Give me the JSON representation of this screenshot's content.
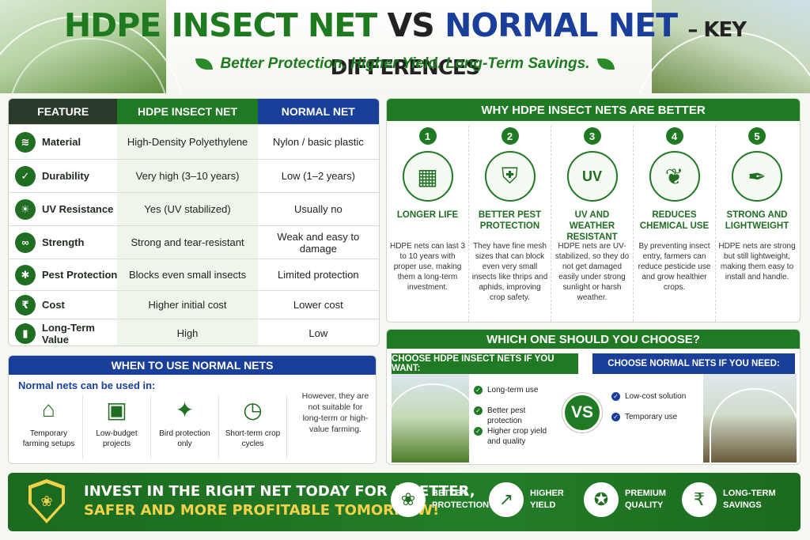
{
  "header": {
    "title_part1": "HDPE INSECT NET",
    "title_vs": "VS",
    "title_part2": "NORMAL NET",
    "title_part3": "– KEY DIFFERENCES",
    "subtitle": "Better Protection. Higher Yield. Long-Term Savings."
  },
  "table": {
    "headers": [
      "FEATURE",
      "HDPE INSECT NET",
      "NORMAL NET"
    ],
    "rows": [
      {
        "icon": "layers-icon",
        "glyph": "≋",
        "feature": "Material",
        "hdpe": "High-Density Polyethylene",
        "normal": "Nylon / basic plastic"
      },
      {
        "icon": "shield-check-icon",
        "glyph": "✓",
        "feature": "Durability",
        "hdpe": "Very high (3–10 years)",
        "normal": "Low (1–2 years)"
      },
      {
        "icon": "uv-sun-icon",
        "glyph": "☀",
        "feature": "UV Resistance",
        "hdpe": "Yes  (UV stabilized)",
        "normal": "Usually no"
      },
      {
        "icon": "chain-link-icon",
        "glyph": "∞",
        "feature": "Strength",
        "hdpe": "Strong and tear-resistant",
        "normal": "Weak and easy to damage"
      },
      {
        "icon": "bug-icon",
        "glyph": "✱",
        "feature": "Pest Protection",
        "hdpe": "Blocks even small insects",
        "normal": "Limited protection"
      },
      {
        "icon": "rupee-icon",
        "glyph": "₹",
        "feature": "Cost",
        "hdpe": "Higher initial cost",
        "normal": "Lower cost"
      },
      {
        "icon": "bar-growth-icon",
        "glyph": "▮",
        "feature": "Long-Term Value",
        "hdpe": "High",
        "normal": "Low"
      }
    ]
  },
  "when": {
    "title": "WHEN TO USE NORMAL NETS",
    "subtitle": "Normal nets can be used in:",
    "items": [
      {
        "icon": "greenhouse-icon",
        "glyph": "⌂",
        "label_l1": "Temporary",
        "label_l2": "farming setups"
      },
      {
        "icon": "wallet-icon",
        "glyph": "▣",
        "label_l1": "Low-budget",
        "label_l2": "projects"
      },
      {
        "icon": "bird-icon",
        "glyph": "✦",
        "label_l1": "Bird protection",
        "label_l2": "only"
      },
      {
        "icon": "clock-icon",
        "glyph": "◷",
        "label_l1": "Short-term crop",
        "label_l2": "cycles"
      }
    ],
    "note": "However, they are not suitable for long-term or high-value farming."
  },
  "why": {
    "title": "WHY HDPE INSECT NETS ARE BETTER",
    "items": [
      {
        "num": "1",
        "icon": "calendar-icon",
        "glyph": "▦",
        "title": "LONGER LIFE",
        "text": "HDPE nets can last 3 to 10 years with proper use, making them a long-term investment."
      },
      {
        "num": "2",
        "icon": "bug-shield-icon",
        "glyph": "⛨",
        "title": "BETTER PEST PROTECTION",
        "text": "They have fine mesh sizes that can block even very small insects like thrips and aphids, improving crop safety."
      },
      {
        "num": "3",
        "icon": "uv-icon",
        "glyph": "UV",
        "title": "UV AND WEATHER RESISTANT",
        "text": "HDPE nets are UV-stabilized, so they do not get damaged easily under strong sunlight or harsh weather."
      },
      {
        "num": "4",
        "icon": "leaf-icon",
        "glyph": "❦",
        "title": "REDUCES CHEMICAL USE",
        "text": "By preventing insect entry, farmers can reduce pesticide use and grow healthier crops."
      },
      {
        "num": "5",
        "icon": "feather-icon",
        "glyph": "✒",
        "title": "STRONG AND LIGHTWEIGHT",
        "text": "HDPE nets are strong but still lightweight, making them easy to install and handle."
      }
    ]
  },
  "which": {
    "title": "WHICH ONE SHOULD YOU CHOOSE?",
    "hdpe_head": "CHOOSE HDPE INSECT NETS IF YOU WANT:",
    "hdpe_points": [
      "Long-term use",
      "Better pest protection",
      "Higher crop yield and quality"
    ],
    "vs": "VS",
    "normal_head": "CHOOSE NORMAL NETS IF YOU NEED:",
    "normal_points": [
      "Low-cost solution",
      "Temporary use"
    ]
  },
  "banner": {
    "line1": "INVEST IN THE RIGHT NET TODAY FOR A BETTER,",
    "line2": "SAFER AND MORE PROFITABLE TOMORROW!",
    "items": [
      {
        "icon": "plant-hand-icon",
        "glyph": "❀",
        "l1": "BETTER",
        "l2": "PROTECTION"
      },
      {
        "icon": "growth-chart-icon",
        "glyph": "↗",
        "l1": "HIGHER",
        "l2": "YIELD"
      },
      {
        "icon": "medal-icon",
        "glyph": "✪",
        "l1": "PREMIUM",
        "l2": "QUALITY"
      },
      {
        "icon": "rupee-hand-icon",
        "glyph": "₹",
        "l1": "LONG-TERM",
        "l2": "SAVINGS"
      }
    ]
  }
}
